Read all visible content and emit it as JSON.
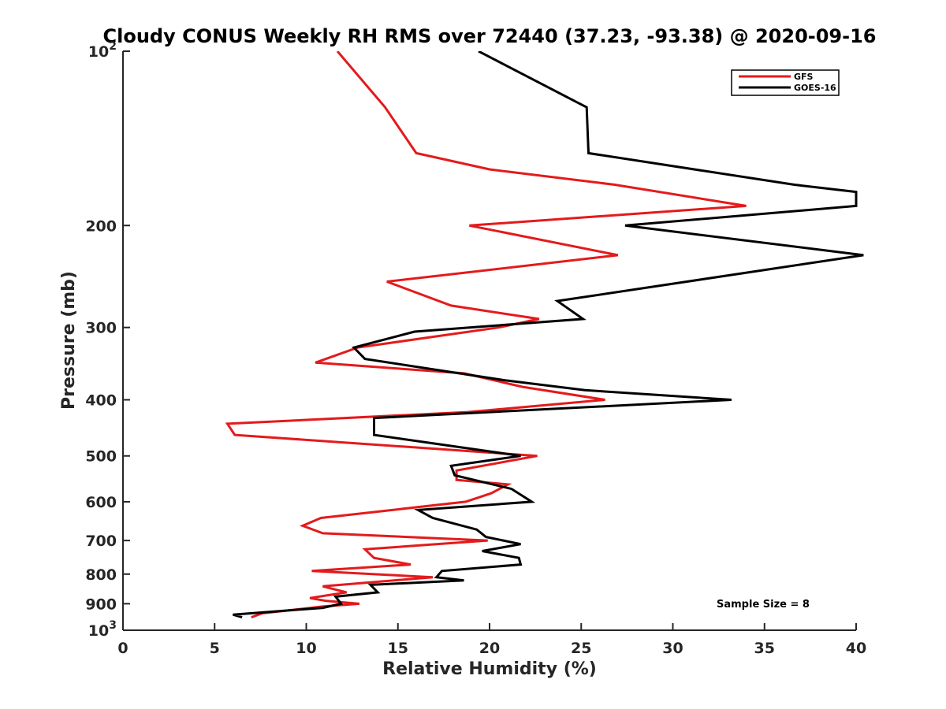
{
  "chart_data": {
    "type": "line",
    "title": "Cloudy CONUS Weekly RH RMS over 72440 (37.23, -93.38) @ 2020-09-16",
    "xlabel": "Relative Humidity (%)",
    "ylabel": "Pressure (mb)",
    "xlim": [
      0,
      40
    ],
    "ylim": [
      100,
      1000
    ],
    "y_scale": "log",
    "y_reversed": true,
    "grid": false,
    "legend_placement": "top-right",
    "x_ticks": [
      "0",
      "5",
      "10",
      "15",
      "20",
      "25",
      "30",
      "35",
      "40"
    ],
    "y_ticks": [
      {
        "value": 100,
        "label": "10",
        "sup": "2"
      },
      {
        "value": 200,
        "label": "200",
        "sup": ""
      },
      {
        "value": 300,
        "label": "300",
        "sup": ""
      },
      {
        "value": 400,
        "label": "400",
        "sup": ""
      },
      {
        "value": 500,
        "label": "500",
        "sup": ""
      },
      {
        "value": 600,
        "label": "600",
        "sup": ""
      },
      {
        "value": 700,
        "label": "700",
        "sup": ""
      },
      {
        "value": 800,
        "label": "800",
        "sup": ""
      },
      {
        "value": 900,
        "label": "900",
        "sup": ""
      },
      {
        "value": 1000,
        "label": "10",
        "sup": "3"
      }
    ],
    "annotation": "Sample Size = 8",
    "series": [
      {
        "name": "GFS",
        "color": "#e41a1c",
        "points": [
          [
            11.7,
            100
          ],
          [
            14.3,
            125
          ],
          [
            16.0,
            150
          ],
          [
            20.0,
            160
          ],
          [
            26.8,
            170
          ],
          [
            34.0,
            185
          ],
          [
            18.9,
            200
          ],
          [
            27.0,
            225
          ],
          [
            14.4,
            250
          ],
          [
            17.9,
            275
          ],
          [
            22.7,
            290
          ],
          [
            20.5,
            300
          ],
          [
            12.8,
            325
          ],
          [
            10.5,
            345
          ],
          [
            18.6,
            360
          ],
          [
            21.8,
            380
          ],
          [
            26.3,
            400
          ],
          [
            18.8,
            420
          ],
          [
            5.7,
            440
          ],
          [
            6.1,
            460
          ],
          [
            22.6,
            500
          ],
          [
            18.2,
            530
          ],
          [
            18.2,
            550
          ],
          [
            21.0,
            560
          ],
          [
            20.1,
            580
          ],
          [
            18.7,
            600
          ],
          [
            10.8,
            640
          ],
          [
            9.8,
            660
          ],
          [
            10.9,
            680
          ],
          [
            19.9,
            700
          ],
          [
            13.2,
            725
          ],
          [
            13.7,
            750
          ],
          [
            15.7,
            770
          ],
          [
            10.3,
            790
          ],
          [
            16.9,
            810
          ],
          [
            10.9,
            840
          ],
          [
            12.2,
            860
          ],
          [
            10.2,
            880
          ],
          [
            11.1,
            890
          ],
          [
            12.9,
            900
          ],
          [
            10.9,
            910
          ],
          [
            7.6,
            935
          ],
          [
            7.0,
            950
          ]
        ]
      },
      {
        "name": "GOES-16",
        "color": "#000000",
        "points": [
          [
            19.4,
            100
          ],
          [
            25.3,
            125
          ],
          [
            25.4,
            150
          ],
          [
            36.6,
            170
          ],
          [
            40.0,
            175
          ],
          [
            40.0,
            185
          ],
          [
            27.4,
            200
          ],
          [
            40.4,
            225
          ],
          [
            23.7,
            270
          ],
          [
            25.1,
            290
          ],
          [
            15.9,
            305
          ],
          [
            12.6,
            325
          ],
          [
            13.2,
            340
          ],
          [
            20.8,
            370
          ],
          [
            25.2,
            385
          ],
          [
            33.2,
            400
          ],
          [
            13.7,
            430
          ],
          [
            13.7,
            460
          ],
          [
            21.7,
            500
          ],
          [
            17.9,
            520
          ],
          [
            18.1,
            540
          ],
          [
            21.2,
            570
          ],
          [
            22.3,
            600
          ],
          [
            16.1,
            620
          ],
          [
            16.9,
            640
          ],
          [
            19.3,
            670
          ],
          [
            19.8,
            690
          ],
          [
            21.7,
            710
          ],
          [
            19.6,
            730
          ],
          [
            21.6,
            750
          ],
          [
            21.7,
            770
          ],
          [
            17.4,
            790
          ],
          [
            17.1,
            810
          ],
          [
            18.6,
            820
          ],
          [
            13.5,
            835
          ],
          [
            13.9,
            860
          ],
          [
            11.6,
            875
          ],
          [
            11.9,
            900
          ],
          [
            10.9,
            915
          ],
          [
            6.0,
            940
          ],
          [
            6.5,
            950
          ]
        ]
      }
    ]
  }
}
